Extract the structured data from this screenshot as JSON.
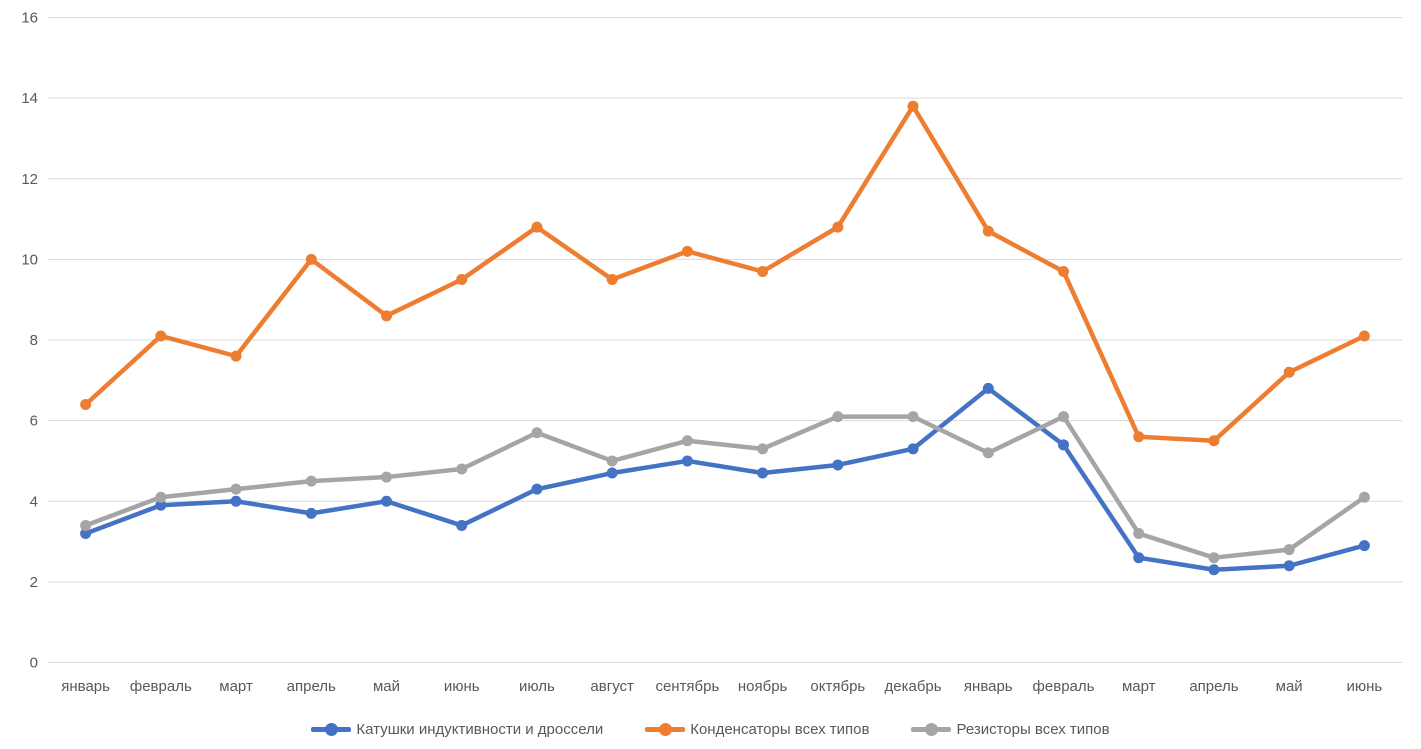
{
  "chart_data": {
    "type": "line",
    "title": "",
    "categories": [
      "январь",
      "февраль",
      "март",
      "апрель",
      "май",
      "июнь",
      "июль",
      "август",
      "сентябрь",
      "ноябрь",
      "октябрь",
      "декабрь",
      "январь",
      "февраль",
      "март",
      "апрель",
      "май",
      "июнь"
    ],
    "series": [
      {
        "name": "Катушки индуктивности и дроссели",
        "color": "#4472C4",
        "values": [
          3.2,
          3.9,
          4.0,
          3.7,
          4.0,
          3.4,
          4.3,
          4.7,
          5.0,
          4.7,
          4.9,
          5.3,
          6.8,
          5.4,
          2.6,
          2.3,
          2.4,
          2.9
        ]
      },
      {
        "name": "Конденсаторы всех типов",
        "color": "#ED7D31",
        "values": [
          6.4,
          8.1,
          7.6,
          10.0,
          8.6,
          9.5,
          10.8,
          9.5,
          10.2,
          9.7,
          10.8,
          13.8,
          10.7,
          9.7,
          5.6,
          5.5,
          7.2,
          8.1
        ]
      },
      {
        "name": "Резисторы всех типов",
        "color": "#A5A5A5",
        "values": [
          3.4,
          4.1,
          4.3,
          4.5,
          4.6,
          4.8,
          5.7,
          5.0,
          5.5,
          5.3,
          6.1,
          6.1,
          5.2,
          6.1,
          3.2,
          2.6,
          2.8,
          4.1
        ]
      }
    ],
    "y_ticks": [
      0,
      2,
      4,
      6,
      8,
      10,
      12,
      14,
      16
    ],
    "ylim": [
      0,
      16
    ],
    "xlabel": "",
    "ylabel": "",
    "grid": true,
    "legend_position": "bottom",
    "gridline_color": "#D9D9D9",
    "axis_text_color": "#595959"
  }
}
